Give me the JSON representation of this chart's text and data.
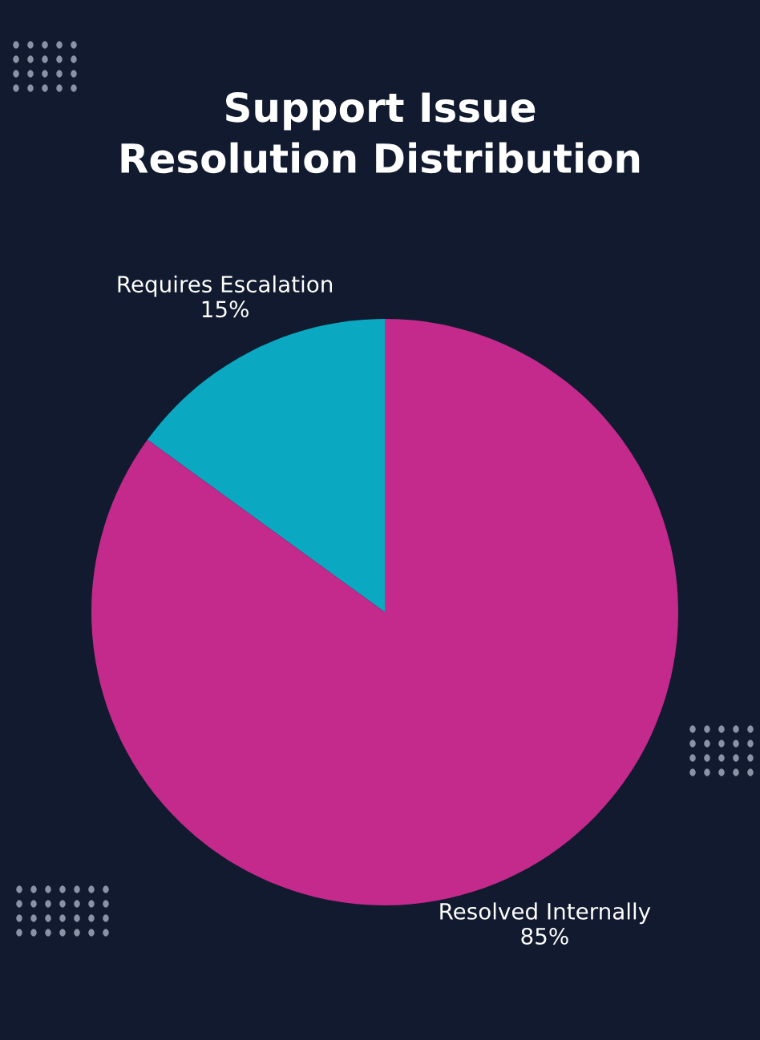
{
  "chart_data": {
    "type": "pie",
    "title": "Support Issue\nResolution Distribution",
    "categories": [
      "Requires Escalation",
      "Resolved Internally"
    ],
    "values": [
      15,
      85
    ],
    "value_labels": [
      "15%",
      "85%"
    ],
    "colors": [
      "#0ba8c2",
      "#c32a8c"
    ]
  }
}
